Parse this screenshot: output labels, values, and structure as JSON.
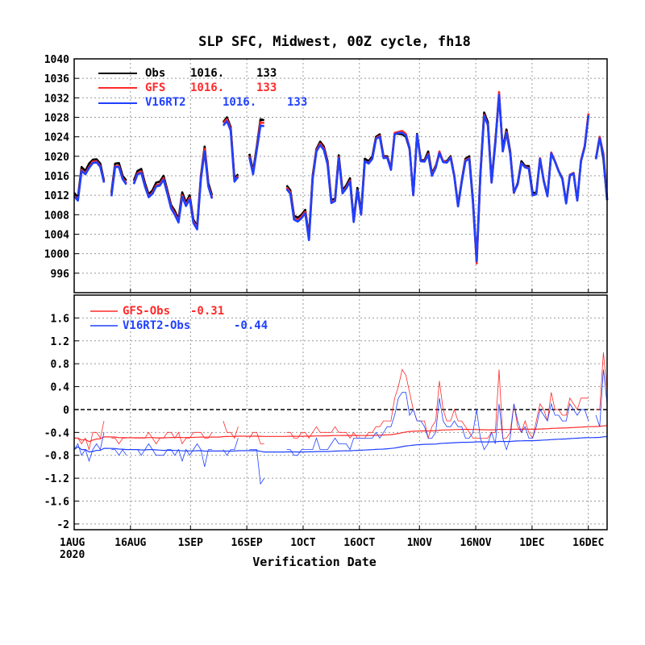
{
  "chart_data": [
    {
      "type": "line",
      "title": "SLP SFC, Midwest, 00Z cycle, fh18",
      "xlabel": "Verification Date",
      "ylabel": "",
      "x_start": "2020-08-01",
      "x_tick_labels": [
        "1AUG",
        "16AUG",
        "1SEP",
        "16SEP",
        "1OCT",
        "16OCT",
        "1NOV",
        "16NOV",
        "1DEC",
        "16DEC"
      ],
      "x_tick_dates": [
        "2020-08-01",
        "2020-08-16",
        "2020-09-01",
        "2020-09-16",
        "2020-10-01",
        "2020-10-16",
        "2020-11-01",
        "2020-11-16",
        "2020-12-01",
        "2020-12-16"
      ],
      "x_sublabel": "2020",
      "x_end": "2020-12-21",
      "ylim": [
        992,
        1040
      ],
      "y_ticks": [
        996,
        1000,
        1004,
        1008,
        1012,
        1016,
        1020,
        1024,
        1028,
        1032,
        1036,
        1040
      ],
      "grid": true,
      "legend_position": "top-left",
      "series": [
        {
          "name": "Obs",
          "color": "#000000",
          "mean": "1016.",
          "count": "133",
          "values": [
            1012.5,
            1011.5,
            1017.8,
            1017.0,
            1018.5,
            1019.3,
            1019.4,
            1018.5,
            1015.0,
            null,
            1012.5,
            1018.5,
            1018.6,
            1016.0,
            1015.0,
            null,
            1015.0,
            1017.0,
            1017.4,
            1014.5,
            1012.2,
            1013.0,
            1014.6,
            1014.8,
            1016.0,
            1013.0,
            1010.0,
            1008.8,
            1007.1,
            1012.6,
            1010.5,
            1012.0,
            1007.0,
            1005.6,
            1016.0,
            1022.0,
            1014.5,
            1012.0,
            null,
            null,
            1027.0,
            1028.0,
            1026.0,
            1015.5,
            1016.3,
            null,
            null,
            1020.5,
            1017.0,
            1022.0,
            1027.6,
            1027.4,
            null,
            null,
            null,
            null,
            null,
            1014.0,
            1013.0,
            1007.8,
            1007.4,
            1008.0,
            1009.0,
            1003.5,
            1016.0,
            1021.5,
            1023.0,
            1022.0,
            1019.0,
            1011.0,
            1011.3,
            1020.2,
            1013.0,
            1014.0,
            1015.5,
            1007.0,
            1013.5,
            1008.5,
            1019.5,
            1019.0,
            1020.0,
            1024.0,
            1024.5,
            1020.0,
            1020.0,
            1017.5,
            1024.6,
            1024.6,
            1024.5,
            1024.0,
            1021.5,
            1012.0,
            1024.6,
            1019.2,
            1019.2,
            1021.0,
            1016.5,
            1018.0,
            1020.5,
            1019.0,
            1019.0,
            1020.0,
            1016.0,
            1010.0,
            1015.0,
            1019.5,
            1020.0,
            1011.0,
            998.5,
            1016.5,
            1029.0,
            1027.0,
            1015.0,
            1023.0,
            1032.5,
            1021.5,
            1025.5,
            1021.0,
            1012.5,
            1014.5,
            1019.0,
            1018.0,
            1018.0,
            1012.5,
            1012.5,
            1019.5,
            1015.0,
            1012.0,
            1020.5,
            1019.0,
            1017.0,
            1015.5,
            1010.5,
            1016.0,
            1016.5,
            1011.0,
            1019.0,
            1022.0,
            1028.6,
            null,
            1019.5,
            1024.0,
            1019.5,
            1011.0
          ]
        },
        {
          "name": "GFS",
          "color": "#ff2a2a",
          "mean": "1016.",
          "count": "133",
          "values": [
            1012.0,
            1011.0,
            1017.2,
            1016.5,
            1017.8,
            1018.9,
            1019.0,
            1018.0,
            1014.8,
            null,
            1012.0,
            1018.0,
            1018.0,
            1015.5,
            1014.5,
            null,
            1014.5,
            1016.5,
            1016.9,
            1014.0,
            1011.8,
            1012.5,
            1014.0,
            1014.3,
            1015.5,
            1012.6,
            1009.6,
            1008.3,
            1006.7,
            1012.0,
            1010.0,
            1011.5,
            1006.6,
            1005.2,
            1015.6,
            1021.5,
            1014.0,
            1011.6,
            null,
            null,
            1026.8,
            1027.6,
            1025.6,
            1015.0,
            1016.0,
            null,
            null,
            1020.0,
            1016.6,
            1021.6,
            1027.0,
            1026.8,
            null,
            null,
            null,
            null,
            null,
            1013.6,
            1012.6,
            1007.3,
            1006.9,
            1007.6,
            1008.6,
            1003.0,
            1015.6,
            1021.2,
            1022.6,
            1021.6,
            1018.6,
            1010.6,
            1011.0,
            1019.8,
            1012.6,
            1013.6,
            1015.0,
            1006.6,
            1013.0,
            1008.0,
            1019.0,
            1018.6,
            1019.6,
            1023.7,
            1024.2,
            1019.8,
            1019.8,
            1017.3,
            1024.8,
            1025.0,
            1025.2,
            1024.6,
            1021.8,
            1012.0,
            1024.4,
            1019.0,
            1019.0,
            1020.5,
            1016.2,
            1017.8,
            1021.0,
            1019.0,
            1018.8,
            1019.8,
            1016.0,
            1009.8,
            1014.8,
            1019.2,
            1019.6,
            1010.5,
            998.0,
            1016.0,
            1028.5,
            1026.5,
            1014.6,
            1022.6,
            1033.2,
            1021.0,
            1025.0,
            1020.6,
            1012.6,
            1014.2,
            1018.6,
            1017.8,
            1017.6,
            1012.0,
            1012.3,
            1019.6,
            1015.0,
            1011.8,
            1020.8,
            1019.0,
            1017.0,
            1015.4,
            1010.4,
            1016.2,
            1016.6,
            1011.0,
            1019.2,
            1022.2,
            1028.8,
            null,
            1019.5,
            1024.0,
            1020.5,
            1011.3
          ]
        },
        {
          "name": "V16RT2",
          "color": "#2040ff",
          "mean": "1016.",
          "count": "133",
          "values": [
            1011.8,
            1010.9,
            1017.0,
            1016.3,
            1017.6,
            1018.6,
            1018.8,
            1017.8,
            1014.6,
            null,
            1011.8,
            1017.8,
            1017.8,
            1015.3,
            1014.2,
            null,
            1014.3,
            1016.3,
            1016.6,
            1013.8,
            1011.6,
            1012.3,
            1013.8,
            1014.0,
            1015.2,
            1012.3,
            1009.3,
            1008.0,
            1006.4,
            1011.7,
            1009.8,
            1011.2,
            1006.3,
            1005.0,
            1015.3,
            1021.0,
            1013.8,
            1011.3,
            null,
            null,
            1026.3,
            1027.2,
            1025.3,
            1014.8,
            1015.8,
            null,
            null,
            1019.8,
            1016.3,
            1021.3,
            1026.3,
            1026.2,
            null,
            null,
            null,
            null,
            null,
            1013.3,
            1012.3,
            1007.0,
            1006.6,
            1007.3,
            1008.3,
            1002.8,
            1015.3,
            1021.0,
            1022.3,
            1021.3,
            1018.3,
            1010.4,
            1010.8,
            1019.6,
            1012.4,
            1013.4,
            1014.8,
            1006.5,
            1013.0,
            1008.0,
            1019.0,
            1018.5,
            1019.5,
            1023.6,
            1024.0,
            1019.6,
            1019.7,
            1017.2,
            1024.5,
            1024.8,
            1024.8,
            1024.3,
            1021.6,
            1012.0,
            1024.4,
            1019.0,
            1018.9,
            1020.3,
            1016.0,
            1017.6,
            1020.7,
            1018.8,
            1018.7,
            1019.7,
            1015.8,
            1009.7,
            1014.7,
            1019.0,
            1019.5,
            1010.6,
            998.5,
            1016.0,
            1028.3,
            1026.4,
            1014.6,
            1022.4,
            1032.6,
            1021.0,
            1024.8,
            1020.5,
            1012.6,
            1014.3,
            1018.6,
            1017.7,
            1017.5,
            1012.0,
            1012.2,
            1019.5,
            1014.9,
            1011.8,
            1020.6,
            1018.9,
            1016.9,
            1015.3,
            1010.3,
            1016.1,
            1016.5,
            1010.9,
            1019.0,
            1022.0,
            1028.4,
            null,
            1019.4,
            1023.7,
            1020.2,
            1011.1
          ]
        }
      ]
    },
    {
      "type": "line",
      "xlabel": "Verification Date",
      "ylim": [
        -2.1,
        2.0
      ],
      "y_ticks": [
        -2,
        -1.6,
        -1.2,
        -0.8,
        -0.4,
        0,
        0.4,
        0.8,
        1.2,
        1.6
      ],
      "y_tick_labels": [
        "-2",
        "-1.6",
        "-1.2",
        "-0.8",
        "-0.4",
        "0",
        "0.4",
        "0.8",
        "1.2",
        "1.6"
      ],
      "zero_line": true,
      "grid": true,
      "legend_position": "top-left",
      "series": [
        {
          "name": "GFS-Obs",
          "color": "#ff2a2a",
          "mean": "-0.31",
          "values": [
            -0.5,
            -0.5,
            -0.6,
            -0.5,
            -0.7,
            -0.4,
            -0.4,
            -0.5,
            -0.2,
            null,
            -0.5,
            -0.5,
            -0.6,
            -0.5,
            -0.5,
            null,
            -0.5,
            -0.5,
            -0.5,
            -0.5,
            -0.4,
            -0.5,
            -0.6,
            -0.5,
            -0.5,
            -0.4,
            -0.4,
            -0.5,
            -0.4,
            -0.6,
            -0.5,
            -0.5,
            -0.4,
            -0.4,
            -0.4,
            -0.5,
            -0.5,
            -0.4,
            null,
            null,
            -0.2,
            -0.4,
            -0.4,
            -0.5,
            -0.3,
            null,
            null,
            -0.5,
            -0.4,
            -0.4,
            -0.6,
            -0.6,
            null,
            null,
            null,
            null,
            null,
            -0.4,
            -0.4,
            -0.5,
            -0.5,
            -0.4,
            -0.4,
            -0.5,
            -0.4,
            -0.3,
            -0.4,
            -0.4,
            -0.4,
            -0.4,
            -0.3,
            -0.4,
            -0.4,
            -0.4,
            -0.5,
            -0.4,
            -0.5,
            -0.5,
            -0.5,
            -0.4,
            -0.4,
            -0.3,
            -0.3,
            -0.2,
            -0.2,
            -0.2,
            0.2,
            0.4,
            0.7,
            0.6,
            0.3,
            0.0,
            -0.2,
            -0.2,
            -0.2,
            -0.5,
            -0.3,
            -0.2,
            0.5,
            0.0,
            -0.2,
            -0.2,
            0.0,
            -0.2,
            -0.2,
            -0.3,
            -0.4,
            -0.5,
            -0.5,
            -0.5,
            -0.5,
            -0.5,
            -0.4,
            -0.4,
            0.7,
            -0.5,
            -0.5,
            -0.4,
            0.1,
            -0.3,
            -0.4,
            -0.2,
            -0.4,
            -0.5,
            -0.2,
            0.1,
            0.0,
            -0.2,
            0.3,
            0.0,
            0.0,
            -0.1,
            -0.1,
            0.2,
            0.1,
            0.0,
            0.2,
            0.2,
            0.2,
            null,
            0.0,
            0.0,
            1.0,
            0.3
          ]
        },
        {
          "name": "V16RT2-Obs",
          "color": "#2040ff",
          "mean": "-0.44",
          "values": [
            -0.7,
            -0.6,
            -0.8,
            -0.7,
            -0.9,
            -0.7,
            -0.6,
            -0.7,
            -0.4,
            null,
            -0.7,
            -0.7,
            -0.8,
            -0.7,
            -0.8,
            null,
            -0.7,
            -0.7,
            -0.8,
            -0.7,
            -0.6,
            -0.7,
            -0.8,
            -0.8,
            -0.8,
            -0.7,
            -0.7,
            -0.8,
            -0.7,
            -0.9,
            -0.7,
            -0.8,
            -0.7,
            -0.6,
            -0.7,
            -1.0,
            -0.7,
            -0.7,
            null,
            null,
            -0.7,
            -0.8,
            -0.7,
            -0.7,
            -0.5,
            null,
            null,
            -0.7,
            -0.7,
            -0.7,
            -1.3,
            -1.2,
            null,
            null,
            null,
            null,
            null,
            -0.7,
            -0.7,
            -0.8,
            -0.8,
            -0.7,
            -0.7,
            -0.7,
            -0.7,
            -0.5,
            -0.7,
            -0.7,
            -0.7,
            -0.6,
            -0.5,
            -0.6,
            -0.6,
            -0.6,
            -0.7,
            -0.5,
            -0.5,
            -0.5,
            -0.5,
            -0.5,
            -0.5,
            -0.4,
            -0.5,
            -0.4,
            -0.3,
            -0.3,
            -0.1,
            0.2,
            0.3,
            0.3,
            -0.1,
            0.0,
            -0.2,
            -0.2,
            -0.3,
            -0.5,
            -0.5,
            -0.4,
            0.2,
            -0.2,
            -0.3,
            -0.3,
            -0.2,
            -0.3,
            -0.3,
            -0.5,
            -0.5,
            -0.4,
            0.0,
            -0.5,
            -0.7,
            -0.6,
            -0.4,
            -0.6,
            0.1,
            -0.5,
            -0.7,
            -0.5,
            0.1,
            -0.2,
            -0.4,
            -0.3,
            -0.5,
            -0.5,
            -0.3,
            0.0,
            -0.1,
            -0.2,
            0.1,
            -0.1,
            -0.1,
            -0.2,
            -0.2,
            0.1,
            0.0,
            -0.1,
            0.0,
            0.0,
            -0.2,
            null,
            -0.1,
            -0.3,
            0.7,
            0.1
          ]
        },
        {
          "name": "GFS-Obs running mean",
          "color": "#ff2a2a",
          "values": []
        },
        {
          "name": "V16RT2-Obs running mean",
          "color": "#2040ff",
          "values": []
        }
      ]
    }
  ]
}
